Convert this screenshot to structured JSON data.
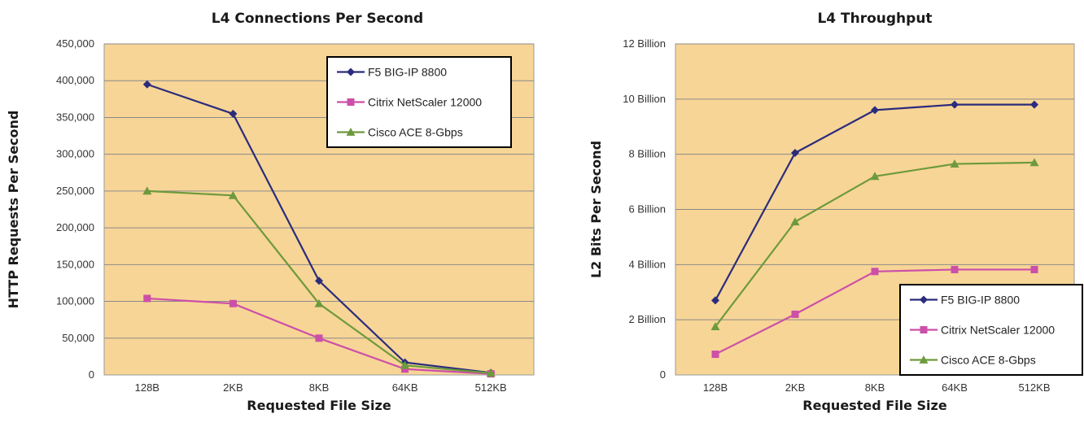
{
  "chart_data": [
    {
      "type": "line",
      "title": "L4 Connections Per Second",
      "xlabel": "Requested File Size",
      "ylabel": "HTTP Requests Per Second",
      "categories": [
        "128B",
        "2KB",
        "8KB",
        "64KB",
        "512KB"
      ],
      "ylim": [
        0,
        450000
      ],
      "yticks": [
        0,
        50000,
        100000,
        150000,
        200000,
        250000,
        300000,
        350000,
        400000,
        450000
      ],
      "ytick_labels": [
        "0",
        "50,000",
        "100,000",
        "150,000",
        "200,000",
        "250,000",
        "300,000",
        "350,000",
        "400,000",
        "450,000"
      ],
      "grid": true,
      "legend_position": "top-right",
      "series": [
        {
          "name": "F5 BIG-IP 8800",
          "marker": "diamond",
          "color": "#2b2c7c",
          "values": [
            395000,
            355000,
            128000,
            17000,
            3000
          ]
        },
        {
          "name": "Citrix NetScaler 12000",
          "marker": "square",
          "color": "#cc4fa8",
          "values": [
            104000,
            97000,
            50000,
            8000,
            1500
          ]
        },
        {
          "name": "Cisco ACE 8-Gbps",
          "marker": "triangle",
          "color": "#6d9a3c",
          "values": [
            250000,
            244000,
            97000,
            13000,
            2500
          ]
        }
      ]
    },
    {
      "type": "line",
      "title": "L4 Throughput",
      "xlabel": "Requested File Size",
      "ylabel": "L2 Bits Per Second",
      "categories": [
        "128B",
        "2KB",
        "8KB",
        "64KB",
        "512KB"
      ],
      "ylim": [
        0,
        12
      ],
      "yticks": [
        0,
        2,
        4,
        6,
        8,
        10,
        12
      ],
      "ytick_labels": [
        "0",
        "2  Billion",
        "4 Billion",
        "6 Billion",
        "8 Billion",
        "10 Billion",
        "12 Billion"
      ],
      "grid": true,
      "legend_position": "bottom-right",
      "series": [
        {
          "name": "F5 BIG-IP 8800",
          "marker": "diamond",
          "color": "#2b2c7c",
          "values": [
            2.7,
            8.05,
            9.6,
            9.8,
            9.8
          ]
        },
        {
          "name": "Citrix NetScaler 12000",
          "marker": "square",
          "color": "#cc4fa8",
          "values": [
            0.75,
            2.2,
            3.75,
            3.82,
            3.82
          ]
        },
        {
          "name": "Cisco ACE 8-Gbps",
          "marker": "triangle",
          "color": "#6d9a3c",
          "values": [
            1.75,
            5.55,
            7.2,
            7.65,
            7.7
          ]
        }
      ]
    }
  ],
  "colors": {
    "plot_bg": "#f7d596",
    "grid": "#8a8a8a",
    "plot_border": "#9a9a9a"
  }
}
